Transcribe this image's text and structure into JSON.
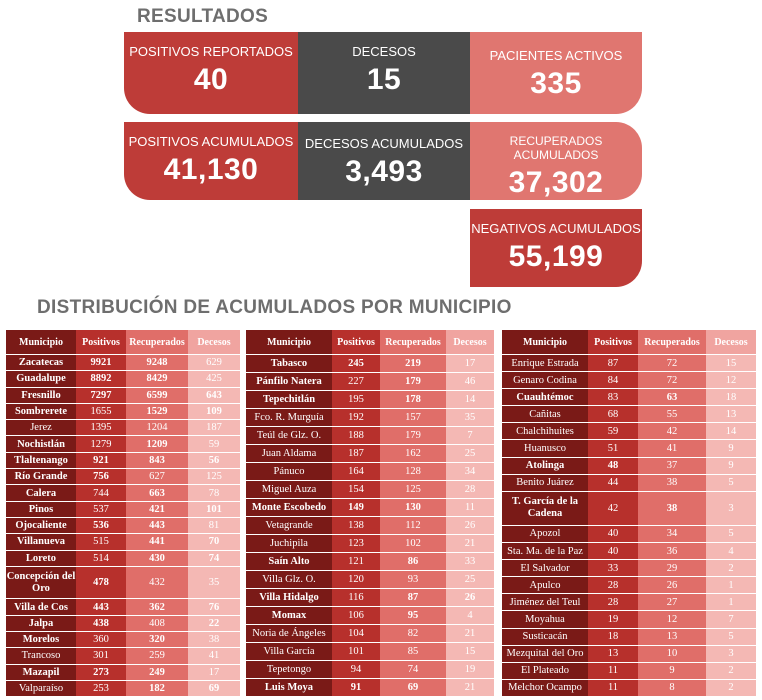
{
  "title": "RESULTADOS",
  "subtitle": "DISTRIBUCIÓN DE ACUMULADOS POR MUNICIPIO",
  "cards": {
    "positivos_reportados": {
      "label": "POSITIVOS REPORTADOS",
      "value": "40"
    },
    "decesos": {
      "label": "DECESOS",
      "value": "15"
    },
    "pacientes_activos": {
      "label": "PACIENTES ACTIVOS",
      "value": "335"
    },
    "positivos_acumulados": {
      "label": "POSITIVOS ACUMULADOS",
      "value": "41,130"
    },
    "decesos_acumulados": {
      "label": "DECESOS ACUMULADOS",
      "value": "3,493"
    },
    "recuperados_acumulados": {
      "label": "RECUPERADOS ACUMULADOS",
      "value": "37,302"
    },
    "negativos_acumulados": {
      "label": "NEGATIVOS ACUMULADOS",
      "value": "55,199"
    }
  },
  "table_headers": [
    "Municipio",
    "Positivos",
    "Recuperados",
    "Decesos"
  ],
  "tables": [
    {
      "rows": [
        {
          "m": "Zacatecas",
          "p": "9921",
          "r": "9248",
          "d": "629",
          "mb": true,
          "pb": true,
          "rb": true,
          "db": false
        },
        {
          "m": "Guadalupe",
          "p": "8892",
          "r": "8429",
          "d": "425",
          "mb": true,
          "pb": true,
          "rb": true,
          "db": false
        },
        {
          "m": "Fresnillo",
          "p": "7297",
          "r": "6599",
          "d": "643",
          "mb": true,
          "pb": true,
          "rb": true,
          "db": true
        },
        {
          "m": "Sombrerete",
          "p": "1655",
          "r": "1529",
          "d": "109",
          "mb": true,
          "pb": false,
          "rb": true,
          "db": true
        },
        {
          "m": "Jerez",
          "p": "1395",
          "r": "1204",
          "d": "187",
          "mb": false,
          "pb": false,
          "rb": false,
          "db": false
        },
        {
          "m": "Nochistlán",
          "p": "1279",
          "r": "1209",
          "d": "59",
          "mb": true,
          "pb": false,
          "rb": true,
          "db": false
        },
        {
          "m": "Tlaltenango",
          "p": "921",
          "r": "843",
          "d": "56",
          "mb": true,
          "pb": true,
          "rb": true,
          "db": true
        },
        {
          "m": "Río Grande",
          "p": "756",
          "r": "627",
          "d": "125",
          "mb": true,
          "pb": true,
          "rb": false,
          "db": false
        },
        {
          "m": "Calera",
          "p": "744",
          "r": "663",
          "d": "78",
          "mb": true,
          "pb": false,
          "rb": true,
          "db": false
        },
        {
          "m": "Pinos",
          "p": "537",
          "r": "421",
          "d": "101",
          "mb": true,
          "pb": false,
          "rb": true,
          "db": true
        },
        {
          "m": "Ojocaliente",
          "p": "536",
          "r": "443",
          "d": "81",
          "mb": true,
          "pb": true,
          "rb": true,
          "db": false
        },
        {
          "m": "Villanueva",
          "p": "515",
          "r": "441",
          "d": "70",
          "mb": true,
          "pb": false,
          "rb": true,
          "db": true
        },
        {
          "m": "Loreto",
          "p": "514",
          "r": "430",
          "d": "74",
          "mb": true,
          "pb": false,
          "rb": true,
          "db": true
        },
        {
          "m": "Concepción del Oro",
          "p": "478",
          "r": "432",
          "d": "35",
          "mb": true,
          "pb": true,
          "rb": false,
          "db": false,
          "tall": true
        },
        {
          "m": "Villa de Cos",
          "p": "443",
          "r": "362",
          "d": "76",
          "mb": true,
          "pb": true,
          "rb": true,
          "db": true
        },
        {
          "m": "Jalpa",
          "p": "438",
          "r": "408",
          "d": "22",
          "mb": true,
          "pb": true,
          "rb": false,
          "db": true
        },
        {
          "m": "Morelos",
          "p": "360",
          "r": "320",
          "d": "38",
          "mb": true,
          "pb": false,
          "rb": true,
          "db": false
        },
        {
          "m": "Trancoso",
          "p": "301",
          "r": "259",
          "d": "41",
          "mb": false,
          "pb": false,
          "rb": false,
          "db": false
        },
        {
          "m": "Mazapil",
          "p": "273",
          "r": "249",
          "d": "17",
          "mb": true,
          "pb": true,
          "rb": true,
          "db": false
        },
        {
          "m": "Valparaíso",
          "p": "253",
          "r": "182",
          "d": "69",
          "mb": false,
          "pb": false,
          "rb": true,
          "db": true
        }
      ]
    },
    {
      "rows": [
        {
          "m": "Tabasco",
          "p": "245",
          "r": "219",
          "d": "17",
          "mb": true,
          "pb": true,
          "rb": true,
          "db": false
        },
        {
          "m": "Pánfilo Natera",
          "p": "227",
          "r": "179",
          "d": "46",
          "mb": true,
          "pb": false,
          "rb": true,
          "db": false
        },
        {
          "m": "Tepechitlán",
          "p": "195",
          "r": "178",
          "d": "14",
          "mb": true,
          "pb": false,
          "rb": true,
          "db": false
        },
        {
          "m": "Fco. R. Murguía",
          "p": "192",
          "r": "157",
          "d": "35",
          "mb": false,
          "pb": false,
          "rb": false,
          "db": false
        },
        {
          "m": "Teúl de Glz. O.",
          "p": "188",
          "r": "179",
          "d": "7",
          "mb": false,
          "pb": false,
          "rb": false,
          "db": false
        },
        {
          "m": "Juan Aldama",
          "p": "187",
          "r": "162",
          "d": "25",
          "mb": false,
          "pb": false,
          "rb": false,
          "db": false
        },
        {
          "m": "Pánuco",
          "p": "164",
          "r": "128",
          "d": "34",
          "mb": false,
          "pb": false,
          "rb": false,
          "db": false
        },
        {
          "m": "Miguel Auza",
          "p": "154",
          "r": "125",
          "d": "28",
          "mb": false,
          "pb": false,
          "rb": false,
          "db": false
        },
        {
          "m": "Monte Escobedo",
          "p": "149",
          "r": "130",
          "d": "11",
          "mb": true,
          "pb": true,
          "rb": true,
          "db": false
        },
        {
          "m": "Vetagrande",
          "p": "138",
          "r": "112",
          "d": "26",
          "mb": false,
          "pb": false,
          "rb": false,
          "db": false
        },
        {
          "m": "Juchipila",
          "p": "123",
          "r": "102",
          "d": "21",
          "mb": false,
          "pb": false,
          "rb": false,
          "db": false
        },
        {
          "m": "Saín Alto",
          "p": "121",
          "r": "86",
          "d": "33",
          "mb": true,
          "pb": false,
          "rb": true,
          "db": false
        },
        {
          "m": "Villa Glz. O.",
          "p": "120",
          "r": "93",
          "d": "25",
          "mb": false,
          "pb": false,
          "rb": false,
          "db": false
        },
        {
          "m": "Villa Hidalgo",
          "p": "116",
          "r": "87",
          "d": "26",
          "mb": true,
          "pb": false,
          "rb": true,
          "db": true
        },
        {
          "m": "Momax",
          "p": "106",
          "r": "95",
          "d": "4",
          "mb": true,
          "pb": false,
          "rb": true,
          "db": false
        },
        {
          "m": "Noria de Ángeles",
          "p": "104",
          "r": "82",
          "d": "21",
          "mb": false,
          "pb": false,
          "rb": false,
          "db": false
        },
        {
          "m": "Villa García",
          "p": "101",
          "r": "85",
          "d": "15",
          "mb": false,
          "pb": false,
          "rb": false,
          "db": false
        },
        {
          "m": "Tepetongo",
          "p": "94",
          "r": "74",
          "d": "19",
          "mb": false,
          "pb": false,
          "rb": false,
          "db": false
        },
        {
          "m": "Luis Moya",
          "p": "91",
          "r": "69",
          "d": "21",
          "mb": true,
          "pb": true,
          "rb": true,
          "db": false
        }
      ]
    },
    {
      "rows": [
        {
          "m": "Enrique Estrada",
          "p": "87",
          "r": "72",
          "d": "15",
          "mb": false,
          "pb": false,
          "rb": false,
          "db": false
        },
        {
          "m": "Genaro Codina",
          "p": "84",
          "r": "72",
          "d": "12",
          "mb": false,
          "pb": false,
          "rb": false,
          "db": false
        },
        {
          "m": "Cuauhtémoc",
          "p": "83",
          "r": "63",
          "d": "18",
          "mb": true,
          "pb": false,
          "rb": true,
          "db": false
        },
        {
          "m": "Cañitas",
          "p": "68",
          "r": "55",
          "d": "13",
          "mb": false,
          "pb": false,
          "rb": false,
          "db": false
        },
        {
          "m": "Chalchihuites",
          "p": "59",
          "r": "42",
          "d": "14",
          "mb": false,
          "pb": false,
          "rb": false,
          "db": false
        },
        {
          "m": "Huanusco",
          "p": "51",
          "r": "41",
          "d": "9",
          "mb": false,
          "pb": false,
          "rb": false,
          "db": false
        },
        {
          "m": "Atolinga",
          "p": "48",
          "r": "37",
          "d": "9",
          "mb": true,
          "pb": true,
          "rb": false,
          "db": false
        },
        {
          "m": "Benito Juárez",
          "p": "44",
          "r": "38",
          "d": "5",
          "mb": false,
          "pb": false,
          "rb": false,
          "db": false
        },
        {
          "m": "T. García de la Cadena",
          "p": "42",
          "r": "38",
          "d": "3",
          "mb": true,
          "pb": false,
          "rb": true,
          "db": false,
          "tall": true
        },
        {
          "m": "Apozol",
          "p": "40",
          "r": "34",
          "d": "5",
          "mb": false,
          "pb": false,
          "rb": false,
          "db": false
        },
        {
          "m": "Sta. Ma. de la Paz",
          "p": "40",
          "r": "36",
          "d": "4",
          "mb": false,
          "pb": false,
          "rb": false,
          "db": false
        },
        {
          "m": "El Salvador",
          "p": "33",
          "r": "29",
          "d": "2",
          "mb": false,
          "pb": false,
          "rb": false,
          "db": false
        },
        {
          "m": "Apulco",
          "p": "28",
          "r": "26",
          "d": "1",
          "mb": false,
          "pb": false,
          "rb": false,
          "db": false
        },
        {
          "m": "Jiménez del Teul",
          "p": "28",
          "r": "27",
          "d": "1",
          "mb": false,
          "pb": false,
          "rb": false,
          "db": false
        },
        {
          "m": "Moyahua",
          "p": "19",
          "r": "12",
          "d": "7",
          "mb": false,
          "pb": false,
          "rb": false,
          "db": false
        },
        {
          "m": "Susticacán",
          "p": "18",
          "r": "13",
          "d": "5",
          "mb": false,
          "pb": false,
          "rb": false,
          "db": false
        },
        {
          "m": "Mezquital del Oro",
          "p": "13",
          "r": "10",
          "d": "3",
          "mb": false,
          "pb": false,
          "rb": false,
          "db": false
        },
        {
          "m": "El Plateado",
          "p": "11",
          "r": "9",
          "d": "2",
          "mb": false,
          "pb": false,
          "rb": false,
          "db": false
        },
        {
          "m": "Melchor Ocampo",
          "p": "11",
          "r": "8",
          "d": "2",
          "mb": false,
          "pb": false,
          "rb": false,
          "db": false
        }
      ]
    }
  ]
}
